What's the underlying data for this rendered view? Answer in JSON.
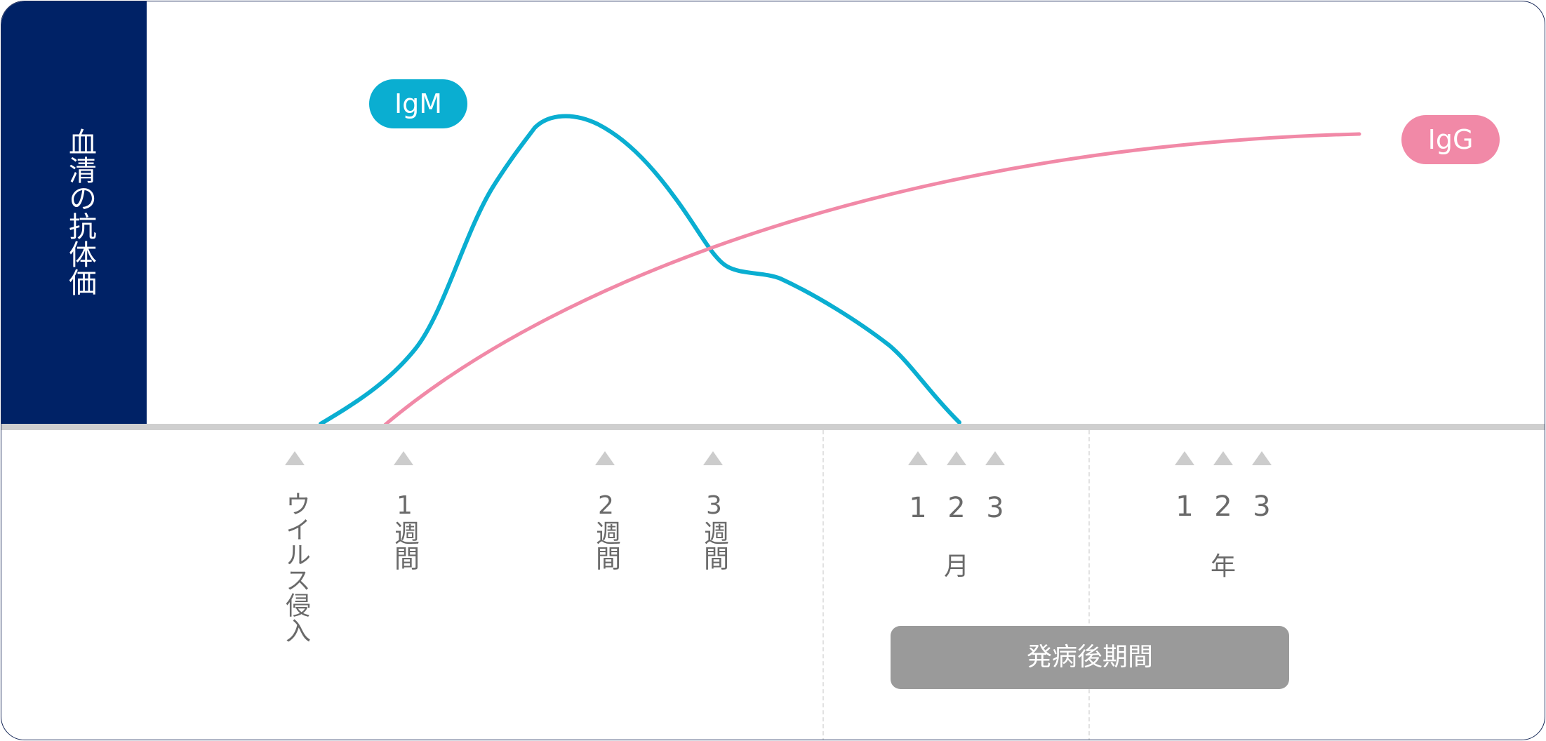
{
  "y_axis_label": "血清の抗体価",
  "series": {
    "igm": {
      "name": "IgM",
      "color": "#0aaed1"
    },
    "igg": {
      "name": "IgG",
      "color": "#f189a7"
    }
  },
  "x_ticks": {
    "virus": "ウイルス侵入",
    "week1": "1週間",
    "week2": "2週間",
    "week3": "3週間",
    "month_numbers": [
      "1",
      "2",
      "3"
    ],
    "month_unit": "月",
    "year_numbers": [
      "1",
      "2",
      "3"
    ],
    "year_unit": "年"
  },
  "period_label": "発病後期間",
  "colors": {
    "panel": "#002266",
    "axis": "#cfcfcf",
    "marker": "#cccccc"
  }
}
